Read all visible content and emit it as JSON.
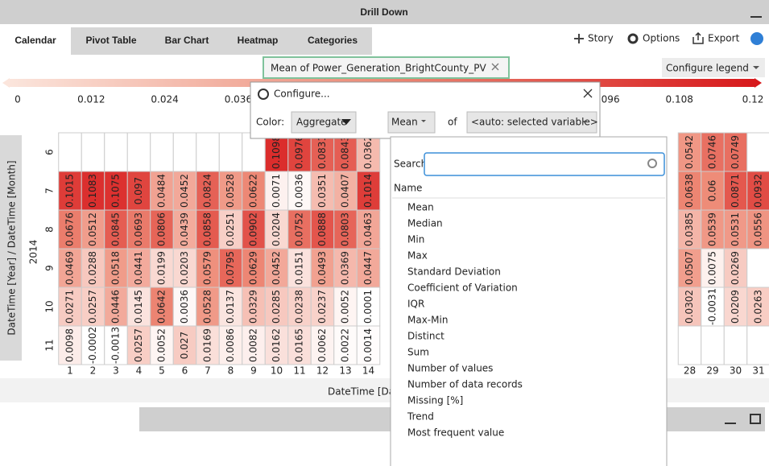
{
  "window": {
    "title": "Drill Down"
  },
  "tabs": [
    "Calendar",
    "Pivot Table",
    "Bar Chart",
    "Heatmap",
    "Categories"
  ],
  "toolbar": [
    "Story",
    "Options",
    "Export"
  ],
  "legend": {
    "tag": "Mean of Power_Generation_BrightCounty_PV",
    "configure": "Configure legend",
    "lim": [
      0,
      0.12
    ],
    "ticks": [
      0,
      0.012,
      0.024,
      0.036,
      0.096,
      0.108,
      0.12
    ]
  },
  "configure": {
    "title": "Configure...",
    "color_label": "Color:",
    "color_mode": "Aggregate",
    "aggregate": "Mean",
    "of": "of",
    "variable": "<auto: selected variable>"
  },
  "dropdown": {
    "search_label": "Search:",
    "column": "Name",
    "items": [
      "Mean",
      "Median",
      "Min",
      "Max",
      "Standard Deviation",
      "Coefficient of Variation",
      "IQR",
      "Max-Min",
      "Distinct",
      "Sum",
      "Number of values",
      "Number of data records",
      "Missing [%]",
      "Trend",
      "Most frequent value"
    ]
  },
  "heatmap": {
    "y_title": "DateTime [Year] / DateTime [Month]",
    "year": "2014",
    "x_title": "DateTime [Da",
    "days": [
      1,
      2,
      3,
      4,
      5,
      6,
      7,
      8,
      9,
      10,
      11,
      12,
      13,
      14,
      28,
      29,
      30,
      31
    ],
    "rows": [
      {
        "month": 6,
        "values": [
          null,
          null,
          null,
          null,
          null,
          null,
          null,
          null,
          null,
          0.1098,
          0.0976,
          0.0831,
          0.0843,
          0.0362,
          0.0542,
          0.0746,
          0.0749,
          null
        ]
      },
      {
        "month": 7,
        "values": [
          0.1015,
          0.1083,
          0.1075,
          0.097,
          0.0484,
          0.0452,
          0.0824,
          0.0528,
          0.0622,
          0.0071,
          0.0036,
          0.0351,
          0.0407,
          0.1014,
          0.0638,
          0.06,
          0.0871,
          0.0932
        ]
      },
      {
        "month": 8,
        "values": [
          0.0676,
          0.0512,
          0.0845,
          0.0693,
          0.0806,
          0.0439,
          0.0858,
          0.0251,
          0.0902,
          0.0204,
          0.0752,
          0.0888,
          0.0803,
          0.0463,
          0.0385,
          0.0539,
          0.0531,
          0.0556
        ]
      },
      {
        "month": 9,
        "values": [
          0.0469,
          0.0288,
          0.0518,
          0.0441,
          0.0199,
          0.0203,
          0.0579,
          0.0795,
          0.0629,
          0.0452,
          0.0151,
          0.0493,
          0.0369,
          0.0447,
          0.0507,
          0.0075,
          0.0269,
          null
        ]
      },
      {
        "month": 10,
        "values": [
          0.0271,
          0.0257,
          0.0446,
          0.0145,
          0.0642,
          0.0036,
          0.0528,
          0.0137,
          0.0329,
          0.0285,
          0.0238,
          0.0237,
          0.0052,
          0.0001,
          0.0302,
          -0.0031,
          0.0209,
          0.0263
        ]
      },
      {
        "month": 11,
        "values": [
          0.0098,
          -0.0002,
          -0.0013,
          0.0257,
          0.0052,
          0.027,
          0.0169,
          0.0086,
          0.0082,
          0.0162,
          0.0165,
          0.0062,
          0.0022,
          0.0014,
          null,
          null,
          null,
          null
        ]
      }
    ]
  }
}
